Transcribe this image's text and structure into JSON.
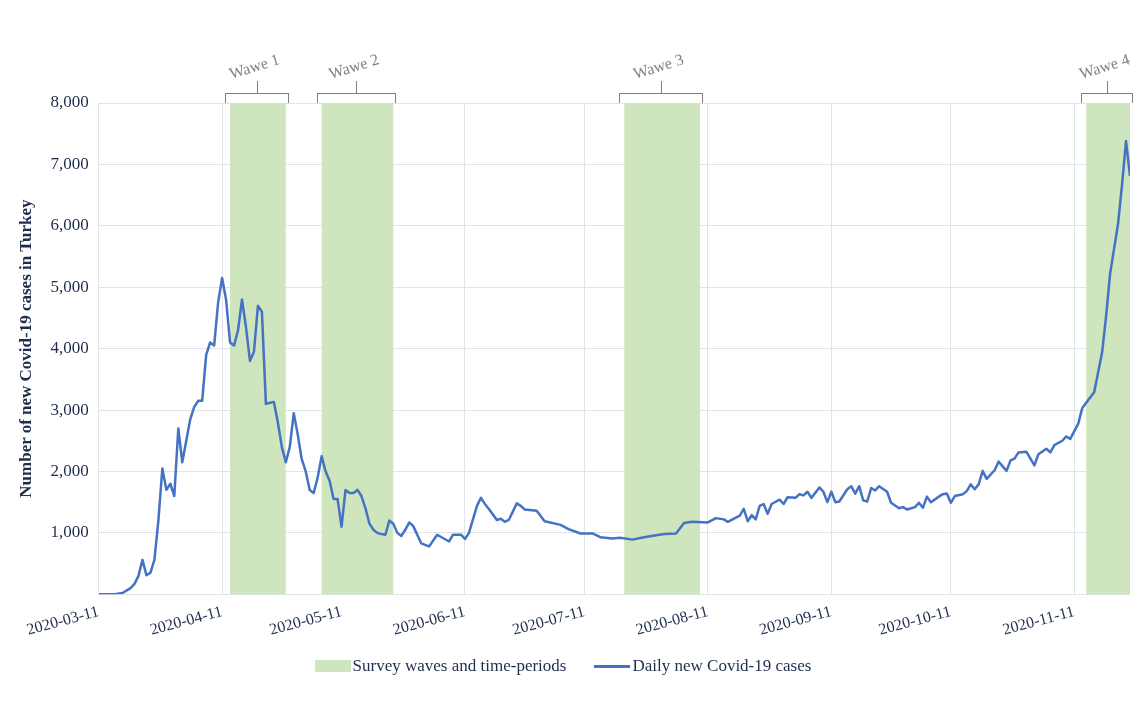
{
  "chart_data": {
    "type": "line",
    "ylabel": "Number of new Covid-19 cases in Turkey",
    "x": [
      "2020-03-11",
      "2020-03-15",
      "2020-03-17",
      "2020-03-19",
      "2020-03-20",
      "2020-03-21",
      "2020-03-22",
      "2020-03-23",
      "2020-03-24",
      "2020-03-25",
      "2020-03-26",
      "2020-03-27",
      "2020-03-28",
      "2020-03-29",
      "2020-03-30",
      "2020-03-31",
      "2020-04-01",
      "2020-04-02",
      "2020-04-03",
      "2020-04-04",
      "2020-04-05",
      "2020-04-06",
      "2020-04-07",
      "2020-04-08",
      "2020-04-09",
      "2020-04-10",
      "2020-04-11",
      "2020-04-12",
      "2020-04-13",
      "2020-04-14",
      "2020-04-15",
      "2020-04-16",
      "2020-04-17",
      "2020-04-18",
      "2020-04-19",
      "2020-04-20",
      "2020-04-21",
      "2020-04-22",
      "2020-04-23",
      "2020-04-24",
      "2020-04-25",
      "2020-04-26",
      "2020-04-27",
      "2020-04-28",
      "2020-04-29",
      "2020-04-30",
      "2020-05-01",
      "2020-05-02",
      "2020-05-03",
      "2020-05-04",
      "2020-05-05",
      "2020-05-06",
      "2020-05-07",
      "2020-05-08",
      "2020-05-09",
      "2020-05-10",
      "2020-05-11",
      "2020-05-12",
      "2020-05-13",
      "2020-05-14",
      "2020-05-15",
      "2020-05-16",
      "2020-05-17",
      "2020-05-18",
      "2020-05-19",
      "2020-05-20",
      "2020-05-21",
      "2020-05-22",
      "2020-05-23",
      "2020-05-24",
      "2020-05-25",
      "2020-05-26",
      "2020-05-27",
      "2020-05-28",
      "2020-05-29",
      "2020-05-31",
      "2020-06-02",
      "2020-06-04",
      "2020-06-07",
      "2020-06-08",
      "2020-06-10",
      "2020-06-11",
      "2020-06-12",
      "2020-06-14",
      "2020-06-15",
      "2020-06-16",
      "2020-06-17",
      "2020-06-19",
      "2020-06-20",
      "2020-06-21",
      "2020-06-22",
      "2020-06-24",
      "2020-06-25",
      "2020-06-26",
      "2020-06-29",
      "2020-07-01",
      "2020-07-05",
      "2020-07-07",
      "2020-07-10",
      "2020-07-13",
      "2020-07-15",
      "2020-07-18",
      "2020-07-20",
      "2020-07-23",
      "2020-07-26",
      "2020-07-29",
      "2020-07-31",
      "2020-08-03",
      "2020-08-05",
      "2020-08-07",
      "2020-08-11",
      "2020-08-13",
      "2020-08-15",
      "2020-08-16",
      "2020-08-19",
      "2020-08-20",
      "2020-08-21",
      "2020-08-22",
      "2020-08-23",
      "2020-08-24",
      "2020-08-25",
      "2020-08-26",
      "2020-08-27",
      "2020-08-29",
      "2020-08-30",
      "2020-08-31",
      "2020-09-02",
      "2020-09-03",
      "2020-09-04",
      "2020-09-05",
      "2020-09-06",
      "2020-09-08",
      "2020-09-09",
      "2020-09-10",
      "2020-09-11",
      "2020-09-12",
      "2020-09-13",
      "2020-09-15",
      "2020-09-16",
      "2020-09-17",
      "2020-09-18",
      "2020-09-19",
      "2020-09-20",
      "2020-09-21",
      "2020-09-22",
      "2020-09-23",
      "2020-09-25",
      "2020-09-26",
      "2020-09-28",
      "2020-09-29",
      "2020-09-30",
      "2020-10-02",
      "2020-10-03",
      "2020-10-04",
      "2020-10-05",
      "2020-10-06",
      "2020-10-08",
      "2020-10-09",
      "2020-10-10",
      "2020-10-11",
      "2020-10-12",
      "2020-10-14",
      "2020-10-15",
      "2020-10-16",
      "2020-10-17",
      "2020-10-18",
      "2020-10-19",
      "2020-10-20",
      "2020-10-22",
      "2020-10-23",
      "2020-10-25",
      "2020-10-26",
      "2020-10-27",
      "2020-10-28",
      "2020-10-30",
      "2020-11-01",
      "2020-11-02",
      "2020-11-04",
      "2020-11-05",
      "2020-11-06",
      "2020-11-08",
      "2020-11-09",
      "2020-11-10",
      "2020-11-12",
      "2020-11-13",
      "2020-11-14",
      "2020-11-16",
      "2020-11-18",
      "2020-11-19",
      "2020-11-20",
      "2020-11-22",
      "2020-11-23",
      "2020-11-24",
      "2020-11-25"
    ],
    "series": [
      {
        "name": "Daily new Covid-19 cases",
        "color": "#4472c4",
        "values": [
          0,
          0,
          20,
          100,
          170,
          300,
          560,
          310,
          350,
          560,
          1200,
          2050,
          1700,
          1800,
          1600,
          2700,
          2150,
          2500,
          2850,
          3050,
          3150,
          3150,
          3900,
          4100,
          4050,
          4750,
          5150,
          4800,
          4100,
          4050,
          4300,
          4800,
          4350,
          3800,
          3950,
          4700,
          4600,
          3100,
          3120,
          3130,
          2800,
          2400,
          2150,
          2400,
          2950,
          2600,
          2200,
          2000,
          1700,
          1650,
          1900,
          2250,
          2000,
          1850,
          1550,
          1550,
          1100,
          1700,
          1650,
          1650,
          1700,
          1600,
          1400,
          1150,
          1050,
          1000,
          980,
          970,
          1200,
          1150,
          1000,
          950,
          1050,
          1170,
          1110,
          830,
          780,
          970,
          860,
          970,
          970,
          900,
          1000,
          1440,
          1570,
          1470,
          1390,
          1210,
          1230,
          1180,
          1210,
          1480,
          1440,
          1380,
          1360,
          1190,
          1130,
          1060,
          990,
          990,
          930,
          910,
          920,
          890,
          930,
          960,
          980,
          990,
          1160,
          1180,
          1170,
          1240,
          1220,
          1180,
          1280,
          1390,
          1190,
          1290,
          1220,
          1440,
          1470,
          1310,
          1470,
          1540,
          1470,
          1580,
          1570,
          1630,
          1610,
          1670,
          1570,
          1740,
          1670,
          1500,
          1670,
          1500,
          1510,
          1710,
          1760,
          1640,
          1760,
          1530,
          1510,
          1730,
          1690,
          1760,
          1670,
          1490,
          1400,
          1420,
          1380,
          1420,
          1490,
          1410,
          1590,
          1500,
          1590,
          1630,
          1640,
          1490,
          1600,
          1630,
          1680,
          1790,
          1710,
          1790,
          2010,
          1880,
          2020,
          2160,
          2010,
          2180,
          2210,
          2310,
          2320,
          2100,
          2280,
          2370,
          2310,
          2430,
          2500,
          2570,
          2530,
          2780,
          3030,
          3120,
          3290,
          3940,
          4530,
          5220,
          6030,
          6670,
          7380,
          6810
        ]
      }
    ],
    "xlim": [
      "2020-03-11",
      "2020-11-25"
    ],
    "xticks": [
      "2020-03-11",
      "2020-04-11",
      "2020-05-11",
      "2020-06-11",
      "2020-07-11",
      "2020-08-11",
      "2020-09-11",
      "2020-10-11",
      "2020-11-11"
    ],
    "ylim": [
      0,
      8000
    ],
    "yticks": [
      {
        "value": 0,
        "label": null
      },
      {
        "value": 1000,
        "label": "1,000"
      },
      {
        "value": 2000,
        "label": "2,000"
      },
      {
        "value": 3000,
        "label": "3,000"
      },
      {
        "value": 4000,
        "label": "4,000"
      },
      {
        "value": 5000,
        "label": "5,000"
      },
      {
        "value": 6000,
        "label": "6,000"
      },
      {
        "value": 7000,
        "label": "7,000"
      },
      {
        "value": 8000,
        "label": "8,000"
      }
    ],
    "bands": [
      {
        "axis": "x",
        "from": "2020-04-13",
        "to": "2020-04-27",
        "label": "Wawe 1",
        "color": "#cfe5bd"
      },
      {
        "axis": "x",
        "from": "2020-05-06",
        "to": "2020-05-24",
        "label": "Wawe 2",
        "color": "#cfe5bd"
      },
      {
        "axis": "x",
        "from": "2020-07-21",
        "to": "2020-08-09",
        "label": "Wawe 3",
        "color": "#cfe5bd"
      },
      {
        "axis": "x",
        "from": "2020-11-14",
        "to": "2020-11-25",
        "label": "Wawe 4",
        "color": "#cfe5bd"
      }
    ],
    "annotations": [
      "Survey waves and time-periods"
    ],
    "grid": true,
    "legend": "bottom"
  }
}
